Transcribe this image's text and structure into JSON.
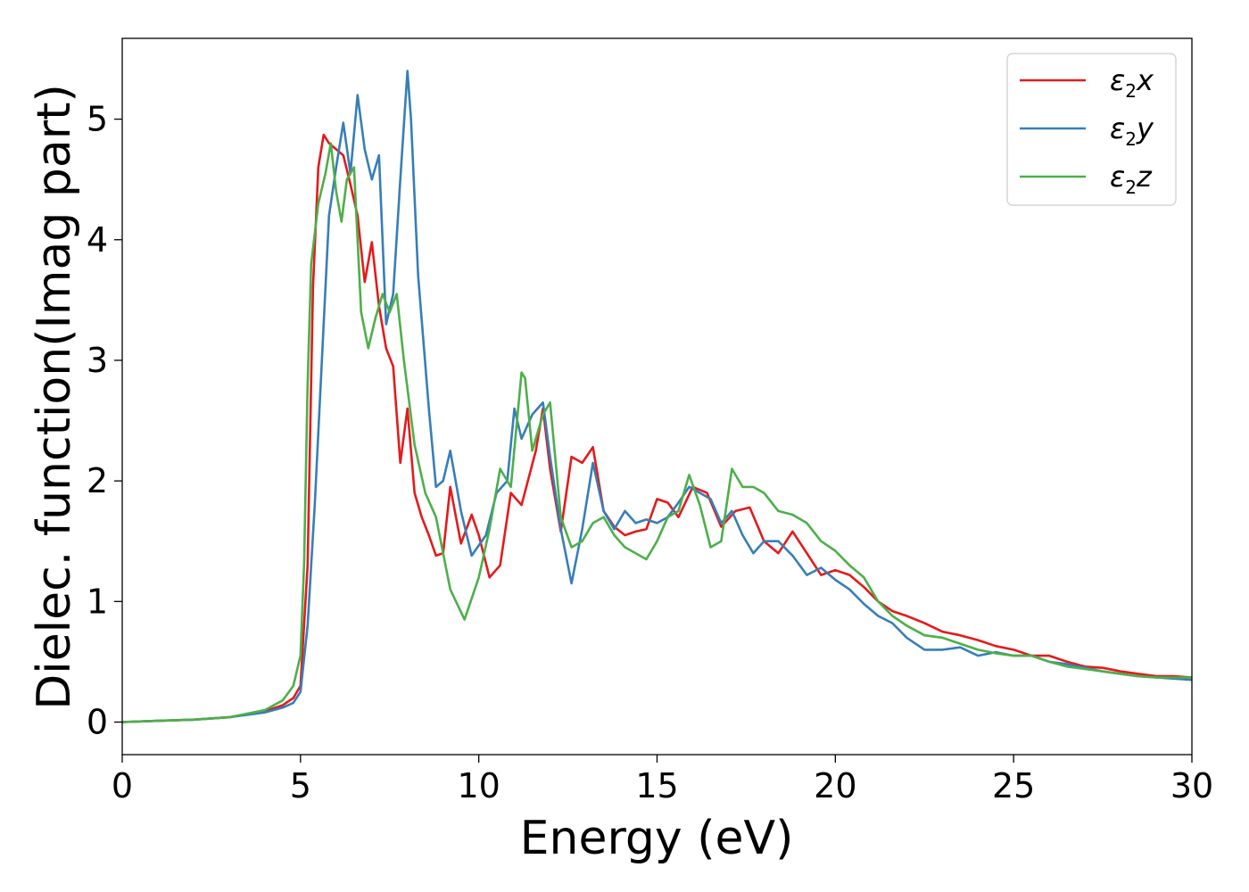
{
  "chart_data": {
    "type": "line",
    "title": "",
    "xlabel": "Energy (eV)",
    "ylabel": "Dielec. function(Imag part)",
    "xlim": [
      0,
      30
    ],
    "ylim": [
      -0.27,
      5.67
    ],
    "xticks": [
      0,
      5,
      10,
      15,
      20,
      25,
      30
    ],
    "yticks": [
      0,
      1,
      2,
      3,
      4,
      5
    ],
    "grid": false,
    "legend_position": "top-right",
    "series": [
      {
        "name": "ε2x",
        "legend": {
          "base": "ε",
          "sub": "2",
          "suffix": "x"
        },
        "color": "#e41a1c",
        "x": [
          0,
          1,
          2,
          3,
          4,
          4.5,
          4.8,
          5.0,
          5.2,
          5.35,
          5.5,
          5.65,
          5.8,
          6.0,
          6.2,
          6.4,
          6.6,
          6.8,
          7.0,
          7.2,
          7.4,
          7.6,
          7.8,
          8.0,
          8.2,
          8.4,
          8.6,
          8.8,
          9.0,
          9.2,
          9.5,
          9.8,
          10.0,
          10.3,
          10.6,
          10.9,
          11.2,
          11.6,
          11.8,
          12.0,
          12.3,
          12.6,
          12.9,
          13.2,
          13.5,
          13.8,
          14.1,
          14.4,
          14.7,
          15.0,
          15.3,
          15.6,
          16.0,
          16.4,
          16.8,
          17.2,
          17.6,
          18.0,
          18.4,
          18.8,
          19.2,
          19.6,
          20.0,
          20.4,
          20.8,
          21.2,
          21.6,
          22.0,
          22.5,
          23.0,
          23.5,
          24.0,
          24.5,
          25.0,
          25.5,
          26.0,
          26.5,
          27.0,
          27.5,
          28.0,
          28.5,
          29.0,
          29.5,
          30.0
        ],
        "y": [
          0,
          0.01,
          0.02,
          0.04,
          0.09,
          0.14,
          0.2,
          0.3,
          1.3,
          3.6,
          4.6,
          4.87,
          4.8,
          4.75,
          4.7,
          4.46,
          4.2,
          3.65,
          3.98,
          3.45,
          3.1,
          2.95,
          2.15,
          2.6,
          1.9,
          1.7,
          1.55,
          1.38,
          1.4,
          1.95,
          1.48,
          1.72,
          1.55,
          1.2,
          1.3,
          1.9,
          1.8,
          2.25,
          2.6,
          2.1,
          1.58,
          2.2,
          2.15,
          2.28,
          1.75,
          1.62,
          1.55,
          1.58,
          1.6,
          1.85,
          1.82,
          1.7,
          1.95,
          1.9,
          1.62,
          1.75,
          1.78,
          1.5,
          1.4,
          1.58,
          1.4,
          1.22,
          1.26,
          1.22,
          1.12,
          1.0,
          0.92,
          0.88,
          0.82,
          0.75,
          0.72,
          0.68,
          0.63,
          0.6,
          0.55,
          0.55,
          0.5,
          0.46,
          0.45,
          0.42,
          0.4,
          0.38,
          0.38,
          0.37
        ]
      },
      {
        "name": "ε2y",
        "legend": {
          "base": "ε",
          "sub": "2",
          "suffix": "y"
        },
        "color": "#377eb8",
        "x": [
          0,
          1,
          2,
          3,
          4,
          4.5,
          4.8,
          5.0,
          5.2,
          5.4,
          5.6,
          5.8,
          6.0,
          6.2,
          6.4,
          6.6,
          6.8,
          7.0,
          7.2,
          7.4,
          7.6,
          7.8,
          8.0,
          8.1,
          8.3,
          8.6,
          8.8,
          9.0,
          9.2,
          9.5,
          9.8,
          10.2,
          10.5,
          10.8,
          11.0,
          11.2,
          11.5,
          11.8,
          12.0,
          12.3,
          12.6,
          12.9,
          13.2,
          13.5,
          13.8,
          14.1,
          14.4,
          14.7,
          15.0,
          15.3,
          15.6,
          15.9,
          16.2,
          16.5,
          16.8,
          17.1,
          17.4,
          17.7,
          18.0,
          18.4,
          18.8,
          19.2,
          19.6,
          20.0,
          20.4,
          20.8,
          21.2,
          21.6,
          22.0,
          22.5,
          23.0,
          23.5,
          24.0,
          24.5,
          25.0,
          25.5,
          26.0,
          26.5,
          27.0,
          27.5,
          28.0,
          28.5,
          29.0,
          29.5,
          30.0
        ],
        "y": [
          0,
          0.01,
          0.02,
          0.04,
          0.08,
          0.12,
          0.16,
          0.25,
          0.8,
          1.8,
          3.0,
          4.2,
          4.6,
          4.97,
          4.55,
          5.2,
          4.75,
          4.5,
          4.7,
          3.3,
          3.55,
          4.5,
          5.4,
          5.0,
          3.7,
          2.6,
          1.95,
          2.0,
          2.25,
          1.75,
          1.38,
          1.55,
          1.9,
          2.0,
          2.6,
          2.35,
          2.55,
          2.65,
          2.2,
          1.6,
          1.15,
          1.6,
          2.15,
          1.75,
          1.6,
          1.75,
          1.65,
          1.68,
          1.65,
          1.7,
          1.82,
          1.95,
          1.9,
          1.85,
          1.65,
          1.75,
          1.55,
          1.4,
          1.5,
          1.5,
          1.38,
          1.22,
          1.28,
          1.18,
          1.1,
          0.98,
          0.88,
          0.82,
          0.7,
          0.6,
          0.6,
          0.62,
          0.55,
          0.58,
          0.55,
          0.55,
          0.5,
          0.48,
          0.45,
          0.42,
          0.4,
          0.38,
          0.37,
          0.36,
          0.35
        ]
      },
      {
        "name": "ε2z",
        "legend": {
          "base": "ε",
          "sub": "2",
          "suffix": "z"
        },
        "color": "#4daf4a",
        "x": [
          0,
          1,
          2,
          3,
          4,
          4.5,
          4.8,
          5.0,
          5.1,
          5.2,
          5.3,
          5.5,
          5.7,
          5.85,
          6.0,
          6.15,
          6.3,
          6.5,
          6.7,
          6.9,
          7.1,
          7.3,
          7.5,
          7.7,
          7.9,
          8.2,
          8.5,
          8.8,
          9.2,
          9.6,
          10.0,
          10.3,
          10.6,
          10.9,
          11.2,
          11.3,
          11.5,
          11.8,
          12.0,
          12.3,
          12.6,
          12.9,
          13.2,
          13.5,
          13.8,
          14.1,
          14.4,
          14.7,
          15.0,
          15.3,
          15.6,
          15.9,
          16.2,
          16.5,
          16.8,
          17.1,
          17.4,
          17.7,
          18.0,
          18.4,
          18.8,
          19.2,
          19.6,
          20.0,
          20.4,
          20.8,
          21.2,
          21.6,
          22.0,
          22.5,
          23.0,
          23.5,
          24.0,
          24.5,
          25.0,
          25.5,
          26.0,
          26.5,
          27.0,
          27.5,
          28.0,
          28.5,
          29.0,
          29.5,
          30.0
        ],
        "y": [
          0,
          0.01,
          0.02,
          0.04,
          0.1,
          0.18,
          0.3,
          0.55,
          1.3,
          2.8,
          3.8,
          4.3,
          4.55,
          4.8,
          4.4,
          4.15,
          4.5,
          4.6,
          3.4,
          3.1,
          3.35,
          3.55,
          3.4,
          3.55,
          3.0,
          2.3,
          1.9,
          1.7,
          1.1,
          0.85,
          1.2,
          1.6,
          2.1,
          1.95,
          2.9,
          2.85,
          2.25,
          2.55,
          2.65,
          1.7,
          1.45,
          1.5,
          1.65,
          1.7,
          1.55,
          1.45,
          1.4,
          1.35,
          1.5,
          1.7,
          1.75,
          2.05,
          1.8,
          1.45,
          1.5,
          2.1,
          1.95,
          1.95,
          1.9,
          1.75,
          1.72,
          1.65,
          1.5,
          1.42,
          1.3,
          1.2,
          1.0,
          0.88,
          0.8,
          0.72,
          0.7,
          0.65,
          0.6,
          0.57,
          0.55,
          0.55,
          0.5,
          0.46,
          0.44,
          0.42,
          0.4,
          0.38,
          0.37,
          0.37,
          0.37
        ]
      }
    ]
  }
}
